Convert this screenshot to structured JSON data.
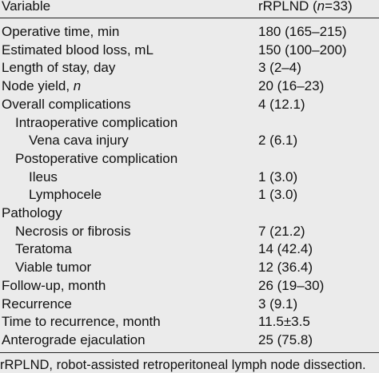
{
  "table": {
    "header": {
      "variable": "Variable",
      "group": {
        "prefix": "rRPLND (",
        "italic": "n",
        "suffix": "=33)"
      }
    },
    "rows": [
      {
        "label": "Operative time, min",
        "level": 0,
        "value": "180 (165–215)"
      },
      {
        "label": "Estimated blood loss, mL",
        "level": 0,
        "value": "150 (100–200)"
      },
      {
        "label": "Length of stay, day",
        "level": 0,
        "value": "3 (2–4)"
      },
      {
        "label": "Node yield, ",
        "italic": "n",
        "level": 0,
        "value": "20 (16–23)"
      },
      {
        "label": "Overall complications",
        "level": 0,
        "value": "4 (12.1)"
      },
      {
        "label": "Intraoperative complication",
        "level": 1,
        "value": null
      },
      {
        "label": "Vena cava injury",
        "level": 2,
        "value": "2 (6.1)"
      },
      {
        "label": "Postoperative complication",
        "level": 1,
        "value": null
      },
      {
        "label": "Ileus",
        "level": 2,
        "value": "1 (3.0)"
      },
      {
        "label": "Lymphocele",
        "level": 2,
        "value": "1 (3.0)"
      },
      {
        "label": "Pathology",
        "level": 0,
        "value": null
      },
      {
        "label": "Necrosis or fibrosis",
        "level": 1,
        "value": "7 (21.2)"
      },
      {
        "label": "Teratoma",
        "level": 1,
        "value": "14 (42.4)"
      },
      {
        "label": "Viable tumor",
        "level": 1,
        "value": "12 (36.4)"
      },
      {
        "label": "Follow-up, month",
        "level": 0,
        "value": "26 (19–30)"
      },
      {
        "label": "Recurrence",
        "level": 0,
        "value": "3 (9.1)"
      },
      {
        "label": "Time to recurrence, month",
        "level": 0,
        "value": "11.5±3.5"
      },
      {
        "label": "Anterograde ejaculation",
        "level": 0,
        "value": "25 (75.8)"
      }
    ],
    "footnote": "rRPLND, robot-assisted retroperitoneal lymph node dissection."
  }
}
